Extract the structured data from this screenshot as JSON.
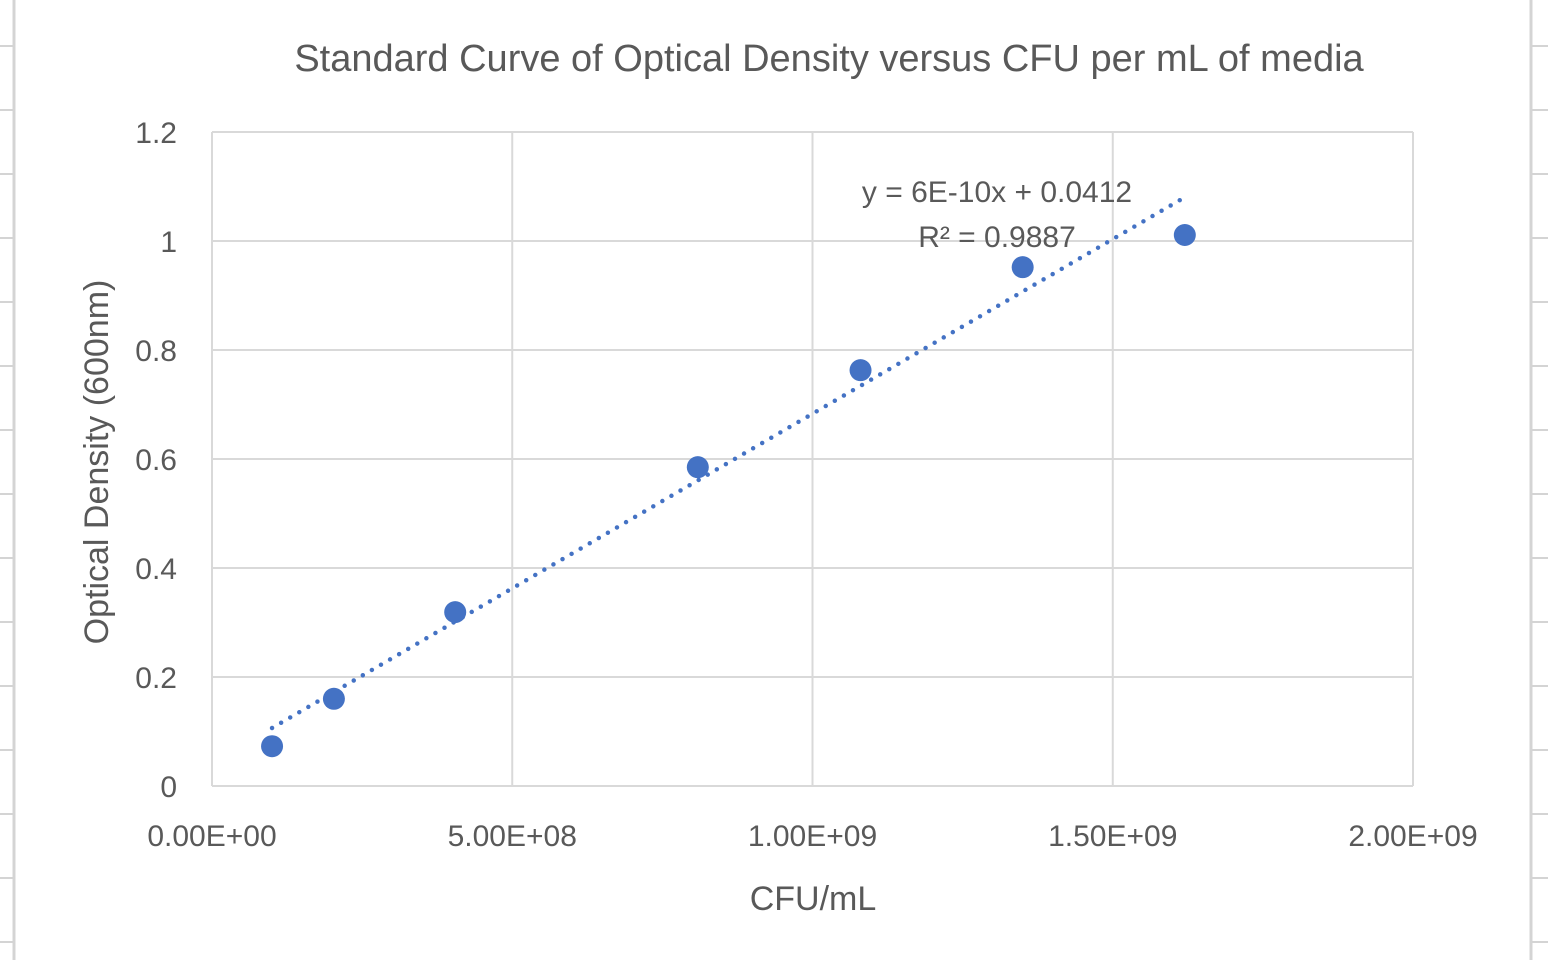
{
  "chart_data": {
    "type": "scatter",
    "title": "Standard Curve of Optical Density versus CFU per mL of media",
    "xlabel": "CFU/mL",
    "ylabel": "Optical Density (600nm)",
    "xlim": [
      0,
      2000000000
    ],
    "ylim": [
      0,
      1.2
    ],
    "x_ticks": [
      0,
      500000000,
      1000000000,
      1500000000,
      2000000000
    ],
    "x_tick_labels": [
      "0.00E+00",
      "5.00E+08",
      "1.00E+09",
      "1.50E+09",
      "2.00E+09"
    ],
    "y_ticks": [
      0,
      0.2,
      0.4,
      0.6,
      0.8,
      1,
      1.2
    ],
    "y_tick_labels": [
      "0",
      "0.2",
      "0.4",
      "0.6",
      "0.8",
      "1",
      "1.2"
    ],
    "grid": true,
    "legend": "none",
    "marker_color": "#4472C4",
    "x": [
      100000000,
      203000000,
      405000000,
      809000000,
      1080000000,
      1350000000,
      1620000000
    ],
    "y": [
      0.073,
      0.16,
      0.319,
      0.585,
      0.763,
      0.952,
      1.011
    ],
    "trendline": {
      "type": "linear",
      "style": "dotted",
      "equation_label": "y = 6E-10x + 0.0412",
      "r_squared_label": "R² = 0.9887"
    }
  }
}
